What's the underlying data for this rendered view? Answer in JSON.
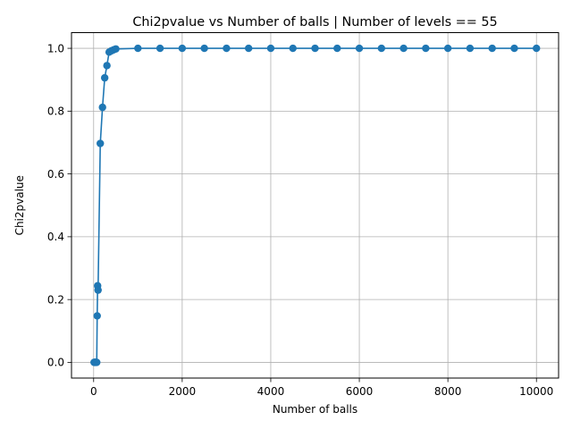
{
  "chart_data": {
    "type": "line",
    "title": "Chi2pvalue vs Number of balls | Number of levels == 55",
    "xlabel": "Number of balls",
    "ylabel": "Chi2pvalue",
    "xlim": [
      -500,
      10500
    ],
    "ylim": [
      -0.05,
      1.05
    ],
    "x_ticks": [
      0,
      2000,
      4000,
      6000,
      8000,
      10000
    ],
    "x_tick_labels": [
      "0",
      "2000",
      "4000",
      "6000",
      "8000",
      "10000"
    ],
    "y_ticks": [
      0.0,
      0.2,
      0.4,
      0.6,
      0.8,
      1.0
    ],
    "y_tick_labels": [
      "0.0",
      "0.2",
      "0.4",
      "0.6",
      "0.8",
      "1.0"
    ],
    "grid": true,
    "marker": "circle",
    "color": "#1f77b4",
    "series": [
      {
        "x": [
          10,
          20,
          30,
          40,
          50,
          60,
          70,
          80,
          90,
          100,
          150,
          200,
          250,
          300,
          350,
          400,
          450,
          500,
          1000,
          1500,
          2000,
          2500,
          3000,
          3500,
          4000,
          4500,
          5000,
          5500,
          6000,
          6500,
          7000,
          7500,
          8000,
          8500,
          9000,
          9500,
          10000
        ],
        "y": [
          0.0,
          0.0,
          0.0,
          0.0,
          0.0,
          0.0,
          0.0,
          0.148,
          0.244,
          0.23,
          0.697,
          0.812,
          0.906,
          0.945,
          0.988,
          0.992,
          0.995,
          0.998,
          1.0,
          1.0,
          1.0,
          1.0,
          1.0,
          1.0,
          1.0,
          1.0,
          1.0,
          1.0,
          1.0,
          1.0,
          1.0,
          1.0,
          1.0,
          1.0,
          1.0,
          1.0,
          1.0
        ]
      }
    ]
  }
}
